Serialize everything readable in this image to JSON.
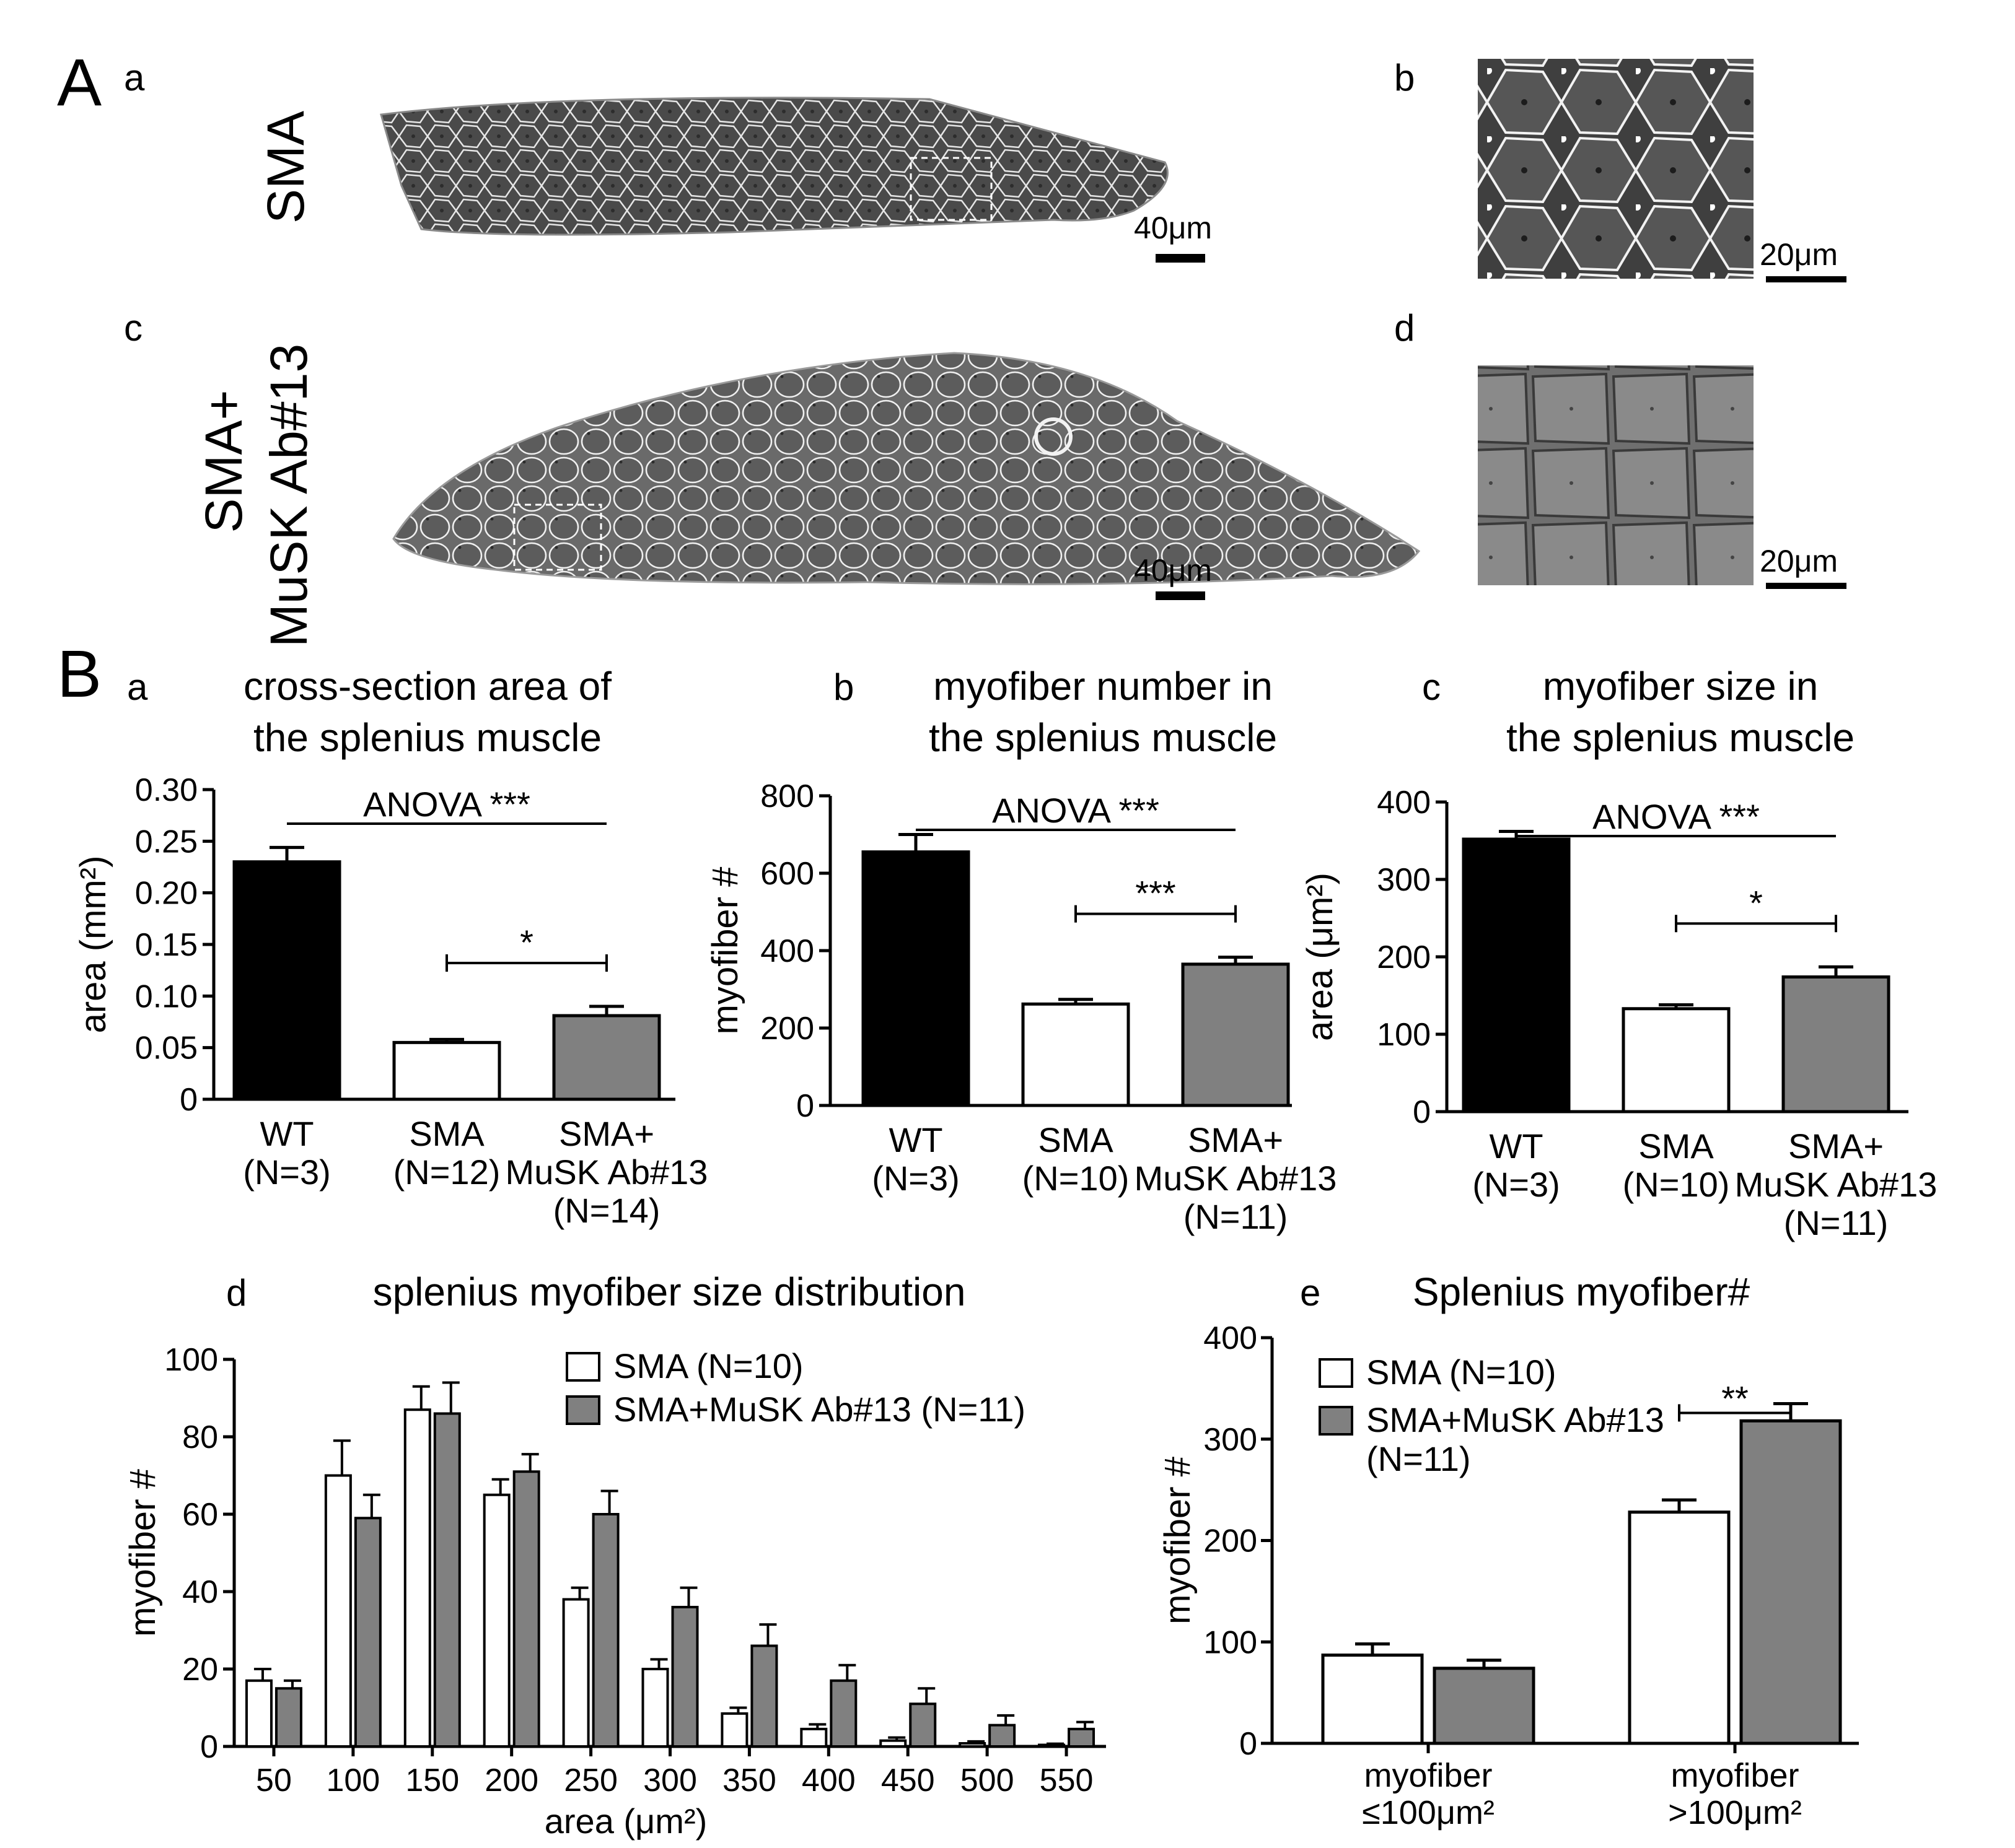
{
  "panelA": {
    "label": "A",
    "sub_a": "a",
    "sub_b": "b",
    "sub_c": "c",
    "sub_d": "d",
    "row1_label": "SMA",
    "row2_label_line1": "SMA+",
    "row2_label_line2": "MuSK Ab#13",
    "scale_40": "40μm",
    "scale_20": "20μm"
  },
  "panelB": {
    "label": "B"
  },
  "colors": {
    "wt": "#000000",
    "sma": "#ffffff",
    "treated": "#808080"
  },
  "chart_data": [
    {
      "id": "Ba",
      "panel": "a",
      "type": "bar",
      "title_line1": "cross-section area of",
      "title_line2": "the splenius muscle",
      "ylabel": "area (mm²)",
      "ylim": [
        0,
        0.3
      ],
      "yticks": [
        "0",
        "0.05",
        "0.10",
        "0.15",
        "0.20",
        "0.25",
        "0.30"
      ],
      "categories": [
        [
          "WT",
          "(N=3)"
        ],
        [
          "SMA",
          "(N=12)"
        ],
        [
          "SMA+",
          "MuSK Ab#13",
          "(N=14)"
        ]
      ],
      "values": [
        0.23,
        0.055,
        0.081
      ],
      "errors": [
        0.014,
        0.003,
        0.009
      ],
      "anova": "ANOVA ***",
      "comparison": "*"
    },
    {
      "id": "Bb",
      "panel": "b",
      "type": "bar",
      "title_line1": "myofiber number in",
      "title_line2": "the splenius muscle",
      "ylabel": "myofiber #",
      "ylim": [
        0,
        800
      ],
      "yticks": [
        "0",
        "200",
        "400",
        "600",
        "800"
      ],
      "categories": [
        [
          "WT",
          "(N=3)"
        ],
        [
          "SMA",
          "(N=10)"
        ],
        [
          "SMA+",
          "MuSK Ab#13",
          "(N=11)"
        ]
      ],
      "values": [
        655,
        262,
        365
      ],
      "errors": [
        45,
        12,
        18
      ],
      "anova": "ANOVA ***",
      "comparison": "***"
    },
    {
      "id": "Bc",
      "panel": "c",
      "type": "bar",
      "title_line1": "myofiber size in",
      "title_line2": "the splenius muscle",
      "ylabel": "area (μm²)",
      "ylim": [
        0,
        400
      ],
      "yticks": [
        "0",
        "100",
        "200",
        "300",
        "400"
      ],
      "categories": [
        [
          "WT",
          "(N=3)"
        ],
        [
          "SMA",
          "(N=10)"
        ],
        [
          "SMA+",
          "MuSK Ab#13",
          "(N=11)"
        ]
      ],
      "values": [
        352,
        133,
        174
      ],
      "errors": [
        10,
        5,
        13
      ],
      "anova": "ANOVA ***",
      "comparison": "*"
    },
    {
      "id": "Bd",
      "panel": "d",
      "type": "bar",
      "title": "splenius myofiber size distribution",
      "xlabel": "area (μm²)",
      "ylabel": "myofiber #",
      "ylim": [
        0,
        100
      ],
      "yticks": [
        "0",
        "20",
        "40",
        "60",
        "80",
        "100"
      ],
      "categories": [
        "50",
        "100",
        "150",
        "200",
        "250",
        "300",
        "350",
        "400",
        "450",
        "500",
        "550"
      ],
      "series": [
        {
          "name": "SMA (N=10)",
          "values": [
            17,
            70,
            87,
            65,
            38,
            20,
            8.5,
            4.5,
            1.5,
            0.8,
            0.4
          ],
          "errors": [
            3,
            9,
            6,
            4,
            3,
            2.5,
            1.5,
            1.2,
            0.8,
            0.5,
            0.3
          ]
        },
        {
          "name": "SMA+MuSK Ab#13 (N=11)",
          "values": [
            15,
            59,
            86,
            71,
            60,
            36,
            26,
            17,
            11,
            5.5,
            4.5
          ],
          "errors": [
            2,
            6,
            8,
            4.5,
            6,
            5,
            5.5,
            4,
            4,
            2.5,
            1.8
          ]
        }
      ],
      "legend_position": "top-right"
    },
    {
      "id": "Be",
      "panel": "e",
      "type": "bar",
      "title": "Splenius myofiber#",
      "ylabel": "myofiber #",
      "ylim": [
        0,
        400
      ],
      "yticks": [
        "0",
        "100",
        "200",
        "300",
        "400"
      ],
      "categories": [
        [
          "myofiber",
          "≤100μm²"
        ],
        [
          "myofiber",
          ">100μm²"
        ]
      ],
      "series": [
        {
          "name": "SMA (N=10)",
          "values": [
            87,
            228
          ],
          "errors": [
            11,
            12
          ]
        },
        {
          "name": "SMA+MuSK Ab#13 (N=11)",
          "values": [
            74,
            318
          ],
          "errors": [
            8,
            17
          ]
        }
      ],
      "legend_line1": "SMA (N=10)",
      "legend_line2a": "SMA+MuSK Ab#13",
      "legend_line2b": "(N=11)",
      "comparison": "**",
      "legend_position": "top-left"
    }
  ]
}
